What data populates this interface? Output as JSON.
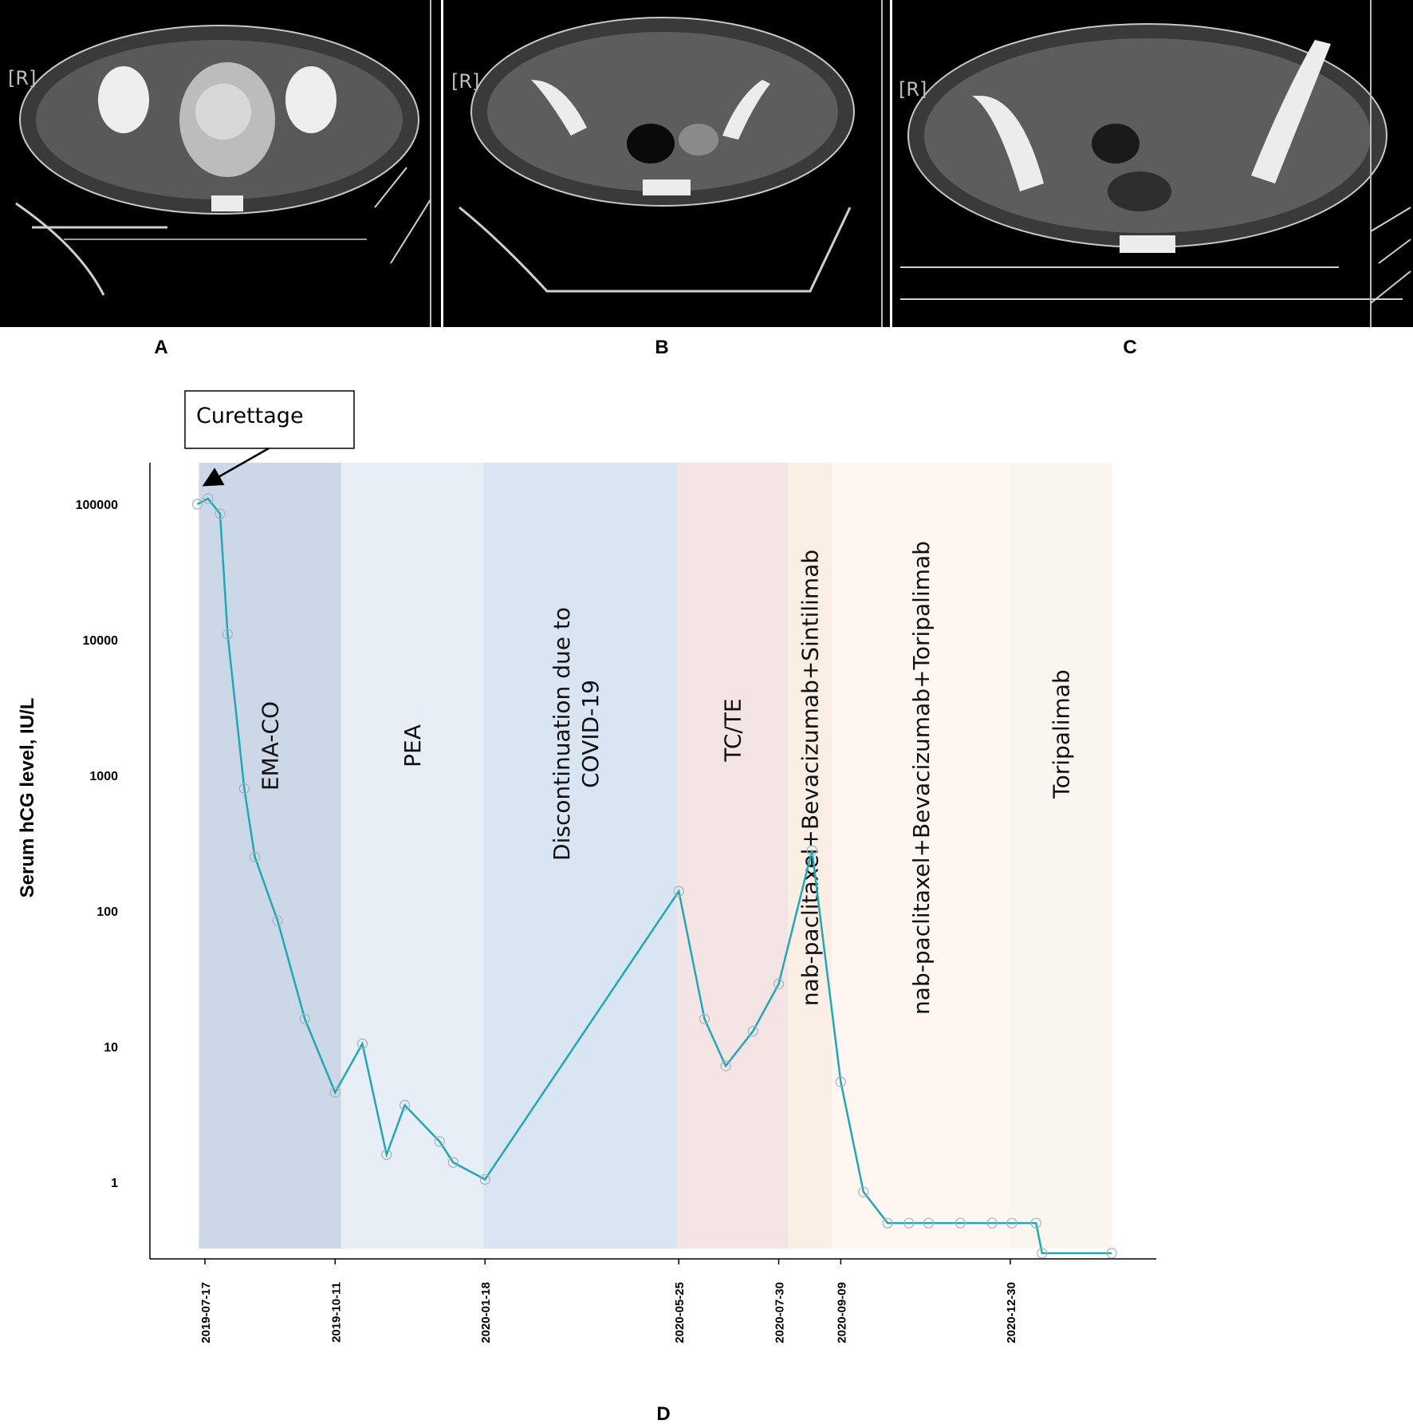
{
  "panels": [
    {
      "label": "A",
      "tag": "[R]",
      "image": "axial pelvic CT with large heterogeneous uterine mass"
    },
    {
      "label": "B",
      "tag": "[R]",
      "image": "axial pelvic CT after treatment"
    },
    {
      "label": "C",
      "tag": "[R]",
      "image": "axial pelvic CT follow-up"
    }
  ],
  "chart_panel_label": "D",
  "colors": {
    "line": "#22a7b8",
    "EMA-CO": "#ccd8e7",
    "PEA": "#e8eef6",
    "covid": "#d9e5f3",
    "TC/TE": "#f4e4e4",
    "nab_sinti": "#fbeee5",
    "nab_tori": "#fdf6f1",
    "tori": "#fbf5f0"
  },
  "chart_data": {
    "type": "line",
    "title": "",
    "xlabel": "",
    "ylabel": "Serum hCG level, IU/L",
    "yscale": "log",
    "ylim": [
      0.3,
      200000
    ],
    "yticks": [
      "1",
      "10",
      "100",
      "1000",
      "10000",
      "100000"
    ],
    "xticks": [
      "2019-07-17",
      "2019-10-11",
      "2020-01-18",
      "2020-05-25",
      "2020-07-30",
      "2020-09-09",
      "2020-12-30"
    ],
    "grid": false,
    "annotation": "Curettage",
    "phases": [
      {
        "label": "EMA-CO",
        "start": "2019-07-13",
        "end": "2019-10-15",
        "color_key": "EMA-CO"
      },
      {
        "label": "PEA",
        "start": "2019-10-15",
        "end": "2020-01-17",
        "color_key": "PEA"
      },
      {
        "label": "Discontinuation due to COVID-19",
        "start": "2020-01-17",
        "end": "2020-05-24",
        "color_key": "covid"
      },
      {
        "label": "TC/TE",
        "start": "2020-05-24",
        "end": "2020-08-05",
        "color_key": "TC/TE"
      },
      {
        "label": "nab-paclitaxel+Bevacizumab+Sintilimab",
        "start": "2020-08-05",
        "end": "2020-09-03",
        "color_key": "nab_sinti"
      },
      {
        "label": "nab-paclitaxel+Bevacizumab+Toripalimab",
        "start": "2020-09-03",
        "end": "2020-12-30",
        "color_key": "nab_tori"
      },
      {
        "label": "Toripalimab",
        "start": "2020-12-30",
        "end": "2021-03-07",
        "color_key": "tori"
      }
    ],
    "series": [
      {
        "points": [
          [
            "2019-07-12",
            100000
          ],
          [
            "2019-07-19",
            110000
          ],
          [
            "2019-07-27",
            85000
          ],
          [
            "2019-08-01",
            11000
          ],
          [
            "2019-08-12",
            800
          ],
          [
            "2019-08-19",
            250
          ],
          [
            "2019-09-03",
            85
          ],
          [
            "2019-09-21",
            16
          ],
          [
            "2019-10-11",
            4.6
          ],
          [
            "2019-10-29",
            10.5
          ],
          [
            "2019-11-14",
            1.6
          ],
          [
            "2019-11-26",
            3.7
          ],
          [
            "2019-12-19",
            2.0
          ],
          [
            "2019-12-28",
            1.4
          ],
          [
            "2020-01-18",
            1.05
          ],
          [
            "2020-05-25",
            140
          ],
          [
            "2020-06-11",
            16
          ],
          [
            "2020-06-25",
            7.2
          ],
          [
            "2020-07-13",
            13
          ],
          [
            "2020-07-30",
            29
          ],
          [
            "2020-08-21",
            280
          ],
          [
            "2020-09-09",
            5.5
          ],
          [
            "2020-09-24",
            0.85
          ],
          [
            "2020-10-10",
            0.5
          ],
          [
            "2020-10-24",
            0.5
          ],
          [
            "2020-11-06",
            0.5
          ],
          [
            "2020-11-27",
            0.5
          ],
          [
            "2020-12-18",
            0.5
          ],
          [
            "2020-12-31",
            0.5
          ],
          [
            "2021-01-16",
            0.5
          ],
          [
            "2021-01-20",
            0.3
          ],
          [
            "2021-03-07",
            0.3
          ]
        ]
      }
    ]
  }
}
